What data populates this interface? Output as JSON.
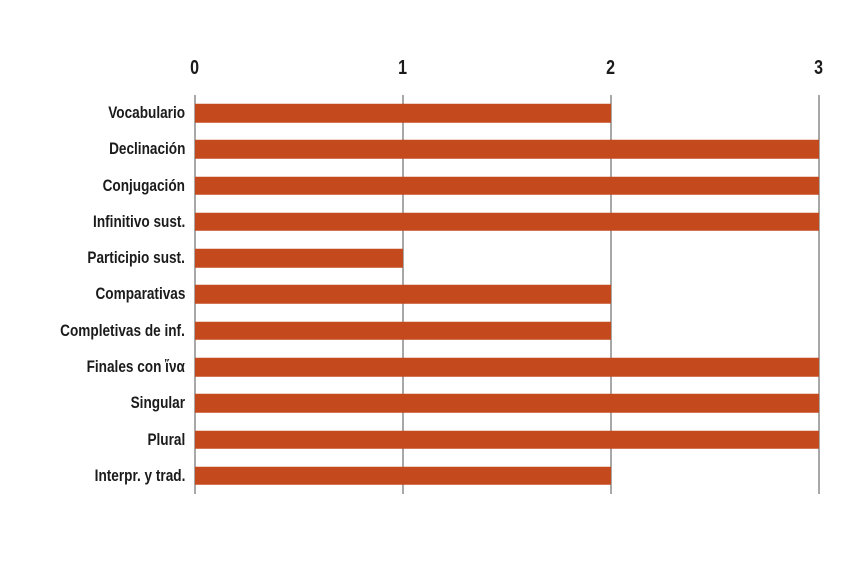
{
  "chart_data": {
    "type": "bar",
    "orientation": "horizontal",
    "title": "",
    "xlabel": "",
    "ylabel": "",
    "categories": [
      "Vocabulario",
      "Declinación",
      "Conjugación",
      "Infinitivo sust.",
      "Participio sust.",
      "Comparativas",
      "Completivas de inf.",
      "Finales con ἵνα",
      "Singular",
      "Plural",
      "Interpr. y trad."
    ],
    "values": [
      2,
      3,
      3,
      3,
      1,
      2,
      2,
      3,
      3,
      3,
      2
    ],
    "xlim": [
      0,
      3
    ],
    "x_ticks": [
      "0",
      "1",
      "2",
      "3"
    ],
    "tick_position": "top",
    "grid": true,
    "legend": false,
    "bar_color": "#c4491d",
    "grid_color": "#a8a8a8",
    "text_color": "#1b1b1b",
    "background_color": "#ffffff"
  }
}
